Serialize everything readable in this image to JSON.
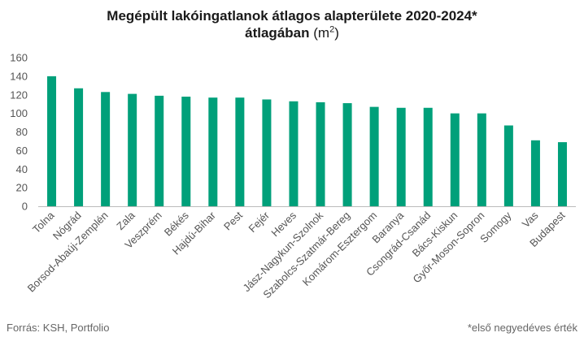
{
  "header": {
    "title_line1": "Megépült lakóingatlanok átlagos alapterülete 2020-2024*",
    "title_line2_bold": "átlagában",
    "title_unit_prefix": "(m",
    "title_unit_sup": "2",
    "title_unit_suffix": ")"
  },
  "footer": {
    "source": "Forrás: KSH, Portfolio",
    "note": "*első negyedéves érték"
  },
  "colors": {
    "bar": "#00a07a",
    "axis": "#bbbbbb"
  },
  "chart_data": {
    "type": "bar",
    "title": "Megépült lakóingatlanok átlagos alapterülete 2020-2024* átlagában (m2)",
    "xlabel": "",
    "ylabel": "",
    "ylim": [
      0,
      160
    ],
    "yticks": [
      0,
      20,
      40,
      60,
      80,
      100,
      120,
      140,
      160
    ],
    "categories": [
      "Tolna",
      "Nógrád",
      "Borsod-Abaúj-Zemplén",
      "Zala",
      "Veszprém",
      "Békés",
      "Hajdú-Bihar",
      "Pest",
      "Fejér",
      "Heves",
      "Jász-Nagykun-Szolnok",
      "Szabolcs-Szatmár-Bereg",
      "Komárom-Esztergom",
      "Baranya",
      "Csongrád-Csanád",
      "Bács-Kiskun",
      "Győr-Moson-Sopron",
      "Somogy",
      "Vas",
      "Budapest"
    ],
    "values": [
      140,
      127,
      123,
      121,
      119,
      118,
      117,
      117,
      115,
      113,
      112,
      111,
      107,
      106,
      106,
      100,
      100,
      87,
      71,
      69
    ]
  }
}
